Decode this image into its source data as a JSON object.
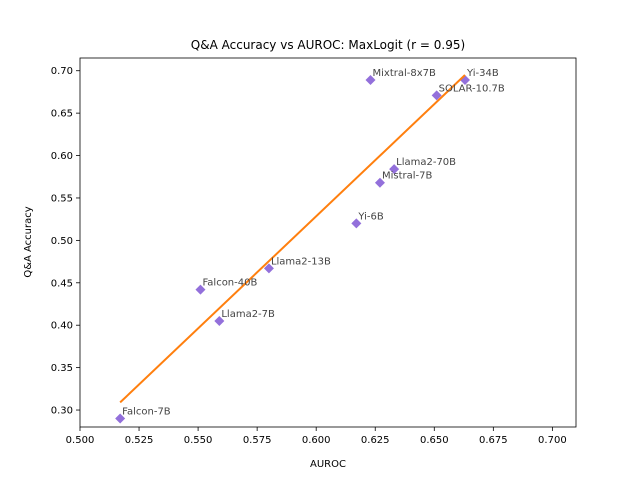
{
  "chart_data": {
    "type": "scatter",
    "title": "Q&A Accuracy vs AUROC: MaxLogit (r = 0.95)",
    "xlabel": "AUROC",
    "ylabel": "Q&A Accuracy",
    "xlim": [
      0.5,
      0.71
    ],
    "ylim": [
      0.28,
      0.715
    ],
    "xticks": [
      "0.500",
      "0.525",
      "0.550",
      "0.575",
      "0.600",
      "0.625",
      "0.650",
      "0.675",
      "0.700"
    ],
    "yticks": [
      "0.30",
      "0.35",
      "0.40",
      "0.45",
      "0.50",
      "0.55",
      "0.60",
      "0.65",
      "0.70"
    ],
    "marker_color": "#9370DB",
    "line_color": "#FF7F0E",
    "points": [
      {
        "label": "Falcon-7B",
        "x": 0.517,
        "y": 0.29
      },
      {
        "label": "Falcon-40B",
        "x": 0.551,
        "y": 0.442
      },
      {
        "label": "Llama2-7B",
        "x": 0.559,
        "y": 0.405
      },
      {
        "label": "Llama2-13B",
        "x": 0.58,
        "y": 0.467
      },
      {
        "label": "Yi-6B",
        "x": 0.617,
        "y": 0.52
      },
      {
        "label": "Mistral-7B",
        "x": 0.627,
        "y": 0.568
      },
      {
        "label": "Llama2-70B",
        "x": 0.633,
        "y": 0.584
      },
      {
        "label": "Mixtral-8x7B",
        "x": 0.623,
        "y": 0.689
      },
      {
        "label": "SOLAR-10.7B",
        "x": 0.651,
        "y": 0.671
      },
      {
        "label": "Yi-34B",
        "x": 0.663,
        "y": 0.689
      }
    ],
    "fit_line": {
      "x": [
        0.517,
        0.663
      ],
      "y": [
        0.309,
        0.695
      ]
    },
    "grid": false,
    "legend": false
  }
}
